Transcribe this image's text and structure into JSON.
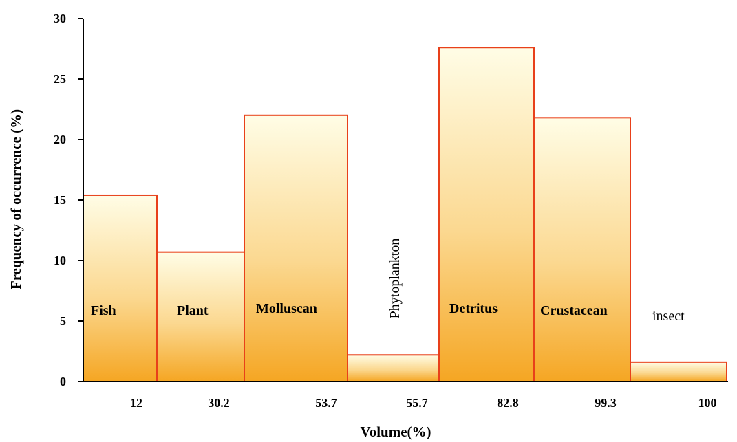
{
  "chart_data": {
    "type": "bar",
    "categories": [
      "Fish",
      "Plant",
      "Molluscan",
      "Phytoplankton",
      "Detritus",
      "Crustacean",
      "insect"
    ],
    "x_tick_labels": [
      "12",
      "30.2",
      "53.7",
      "55.7",
      "82.8",
      "99.3",
      "100"
    ],
    "values": [
      15.4,
      10.7,
      22.0,
      2.2,
      27.6,
      21.8,
      1.6
    ],
    "title": "",
    "xlabel": "Volume(%)",
    "ylabel": "Frequency of occurrence (%)",
    "ylim": [
      0,
      30
    ],
    "yticks": [
      "0",
      "5",
      "10",
      "15",
      "20",
      "25",
      "30"
    ],
    "grid": false,
    "colors": {
      "bar_top": "#fffde6",
      "bar_bottom": "#f5a623",
      "bar_edge": "#e8401a",
      "axis": "#000000"
    }
  }
}
